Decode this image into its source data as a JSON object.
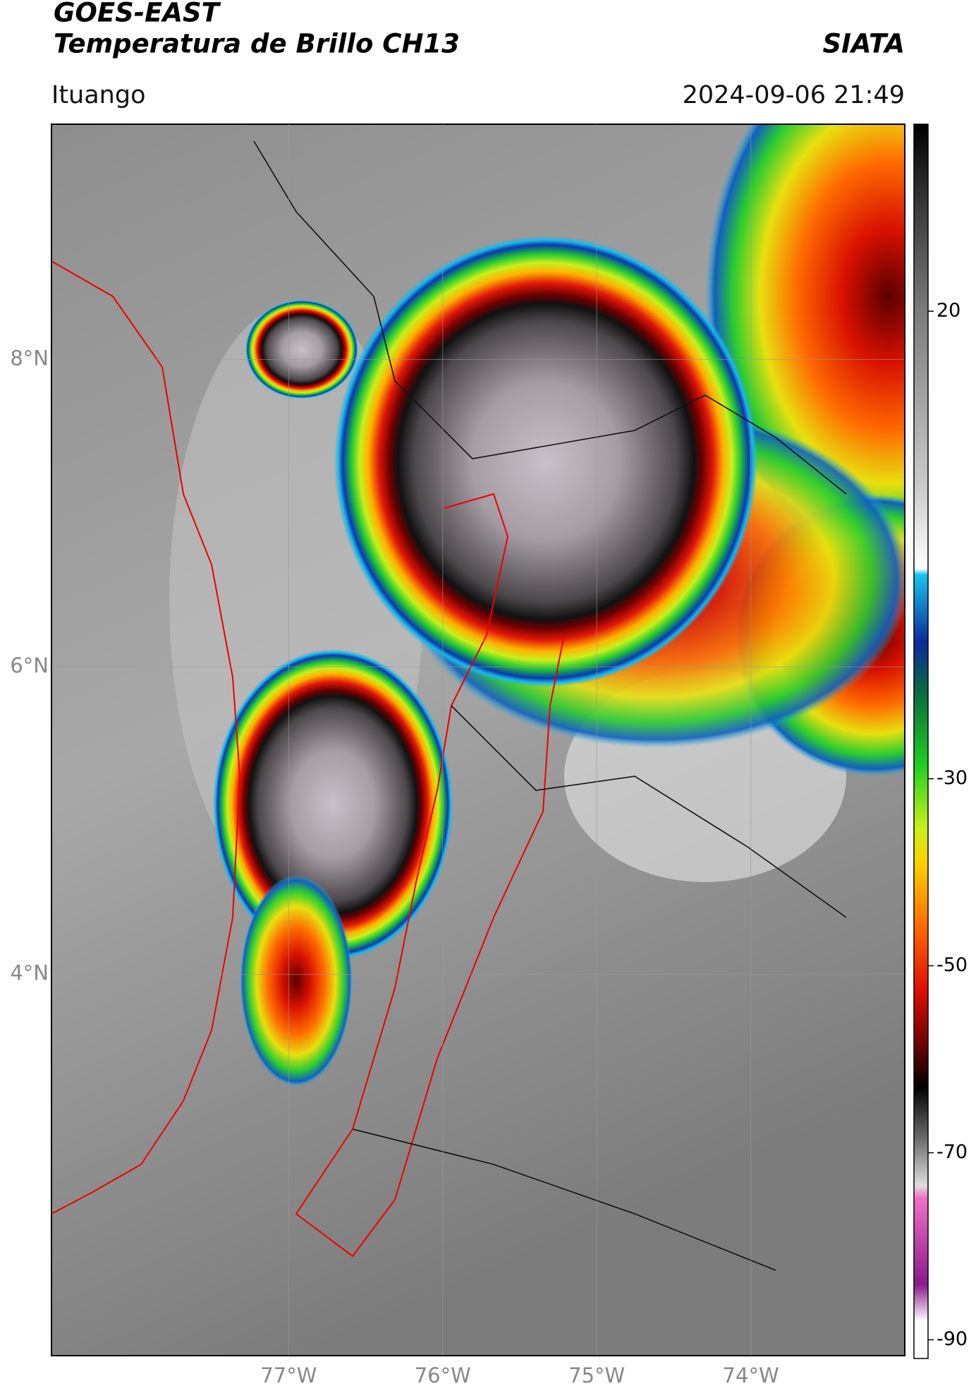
{
  "header": {
    "line1": "GOES-EAST",
    "line2": "Temperatura de Brillo CH13",
    "brand": "SIATA",
    "location": "Ituango",
    "datetime": "2024-09-06 21:49"
  },
  "map": {
    "xlim": [
      -78.54,
      -73.0
    ],
    "ylim": [
      1.52,
      9.53
    ],
    "grid": true,
    "xticks": [
      {
        "value": -77,
        "label": "77°W"
      },
      {
        "value": -76,
        "label": "76°W"
      },
      {
        "value": -75,
        "label": "75°W"
      },
      {
        "value": -74,
        "label": "74°W"
      }
    ],
    "yticks": [
      {
        "value": 8,
        "label": "8°N"
      },
      {
        "value": 6,
        "label": "6°N"
      },
      {
        "value": 4,
        "label": "4°N"
      }
    ]
  },
  "colorbar": {
    "lim": [
      -92,
      40
    ],
    "ticks": [
      20,
      -30,
      -50,
      -70,
      -90
    ]
  }
}
